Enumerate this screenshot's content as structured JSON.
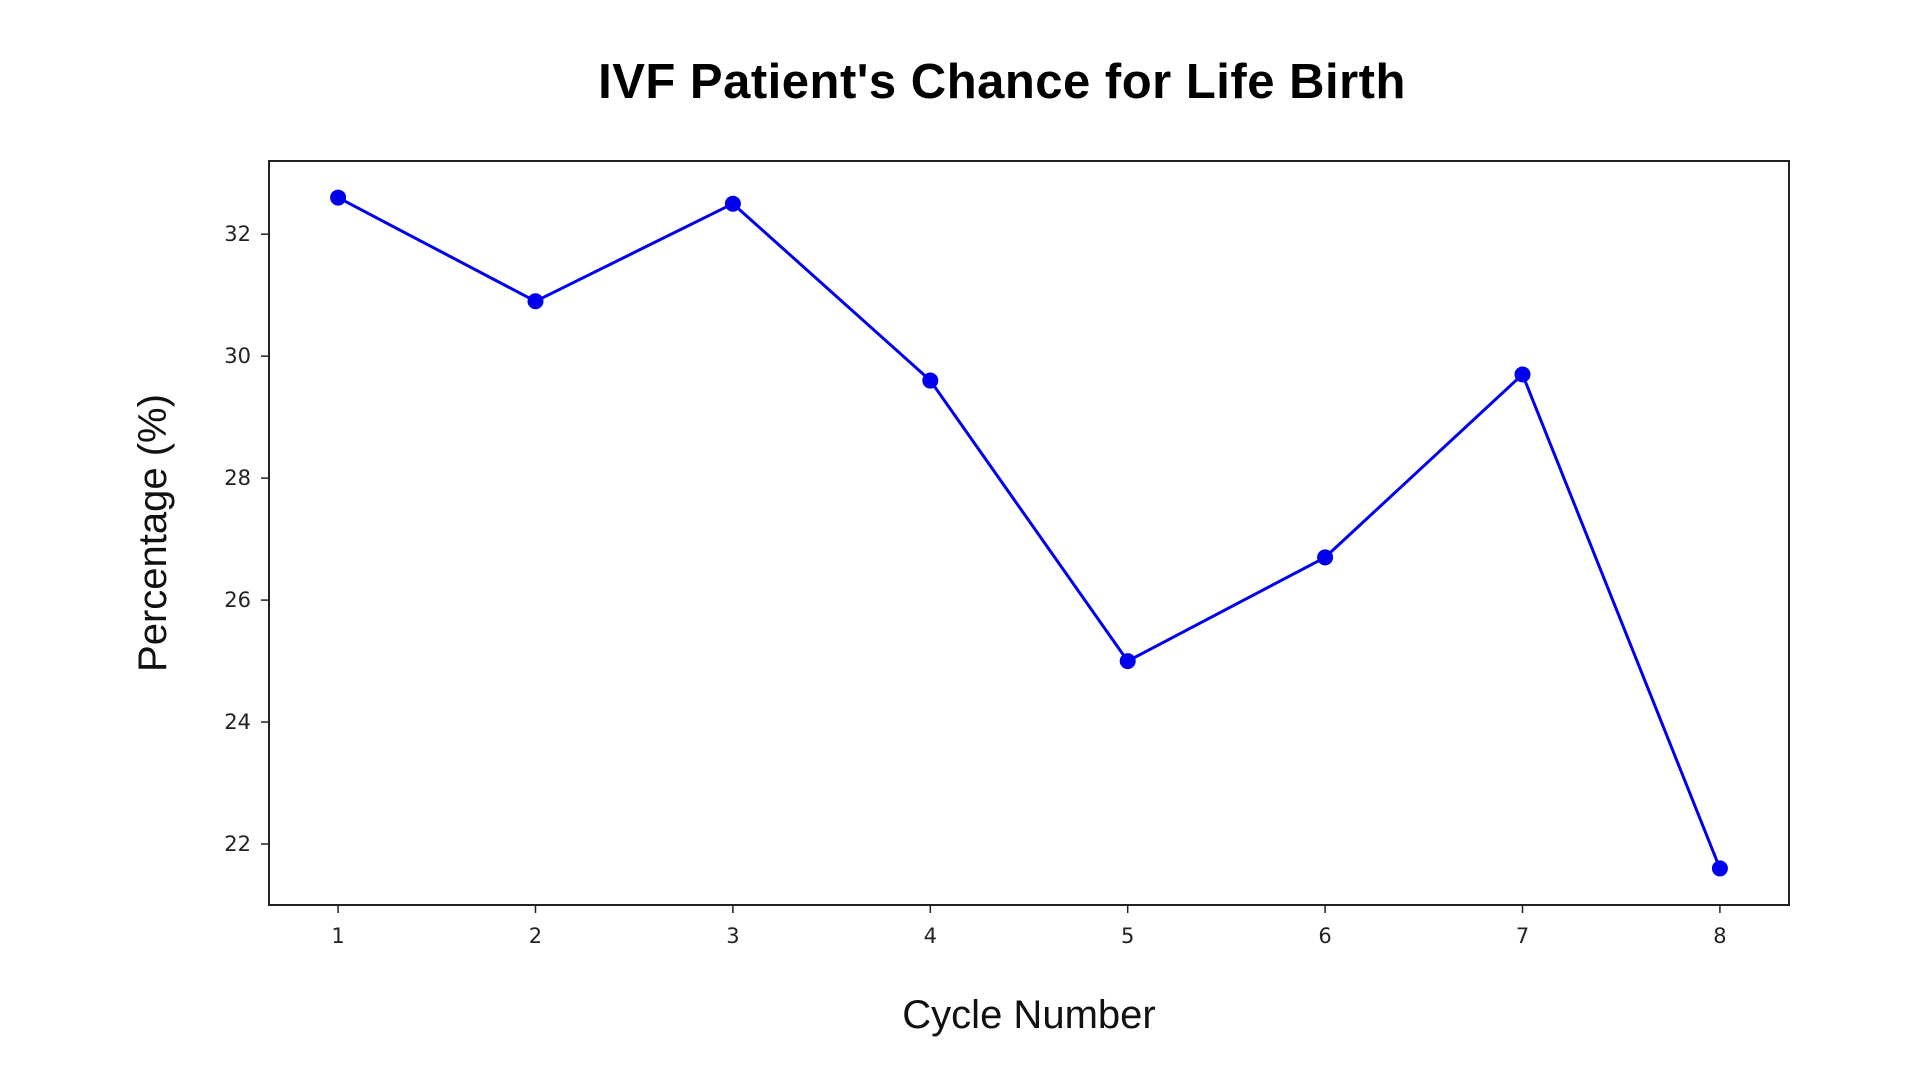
{
  "chart_data": {
    "type": "line",
    "title": "IVF Patient's Chance for Life Birth",
    "xlabel": "Cycle Number",
    "ylabel": "Percentage (%)",
    "x": [
      1,
      2,
      3,
      4,
      5,
      6,
      7,
      8
    ],
    "series": [
      {
        "values": [
          32.6,
          30.9,
          32.5,
          29.6,
          25.0,
          26.7,
          29.7,
          21.6
        ],
        "color": "#0000ee",
        "marker": "circle"
      }
    ],
    "xlim": [
      0.65,
      8.35
    ],
    "ylim": [
      21.0,
      33.2
    ],
    "xticks": [
      1,
      2,
      3,
      4,
      5,
      6,
      7,
      8
    ],
    "yticks": [
      22,
      24,
      26,
      28,
      30,
      32
    ],
    "grid": false,
    "legend": "none"
  }
}
